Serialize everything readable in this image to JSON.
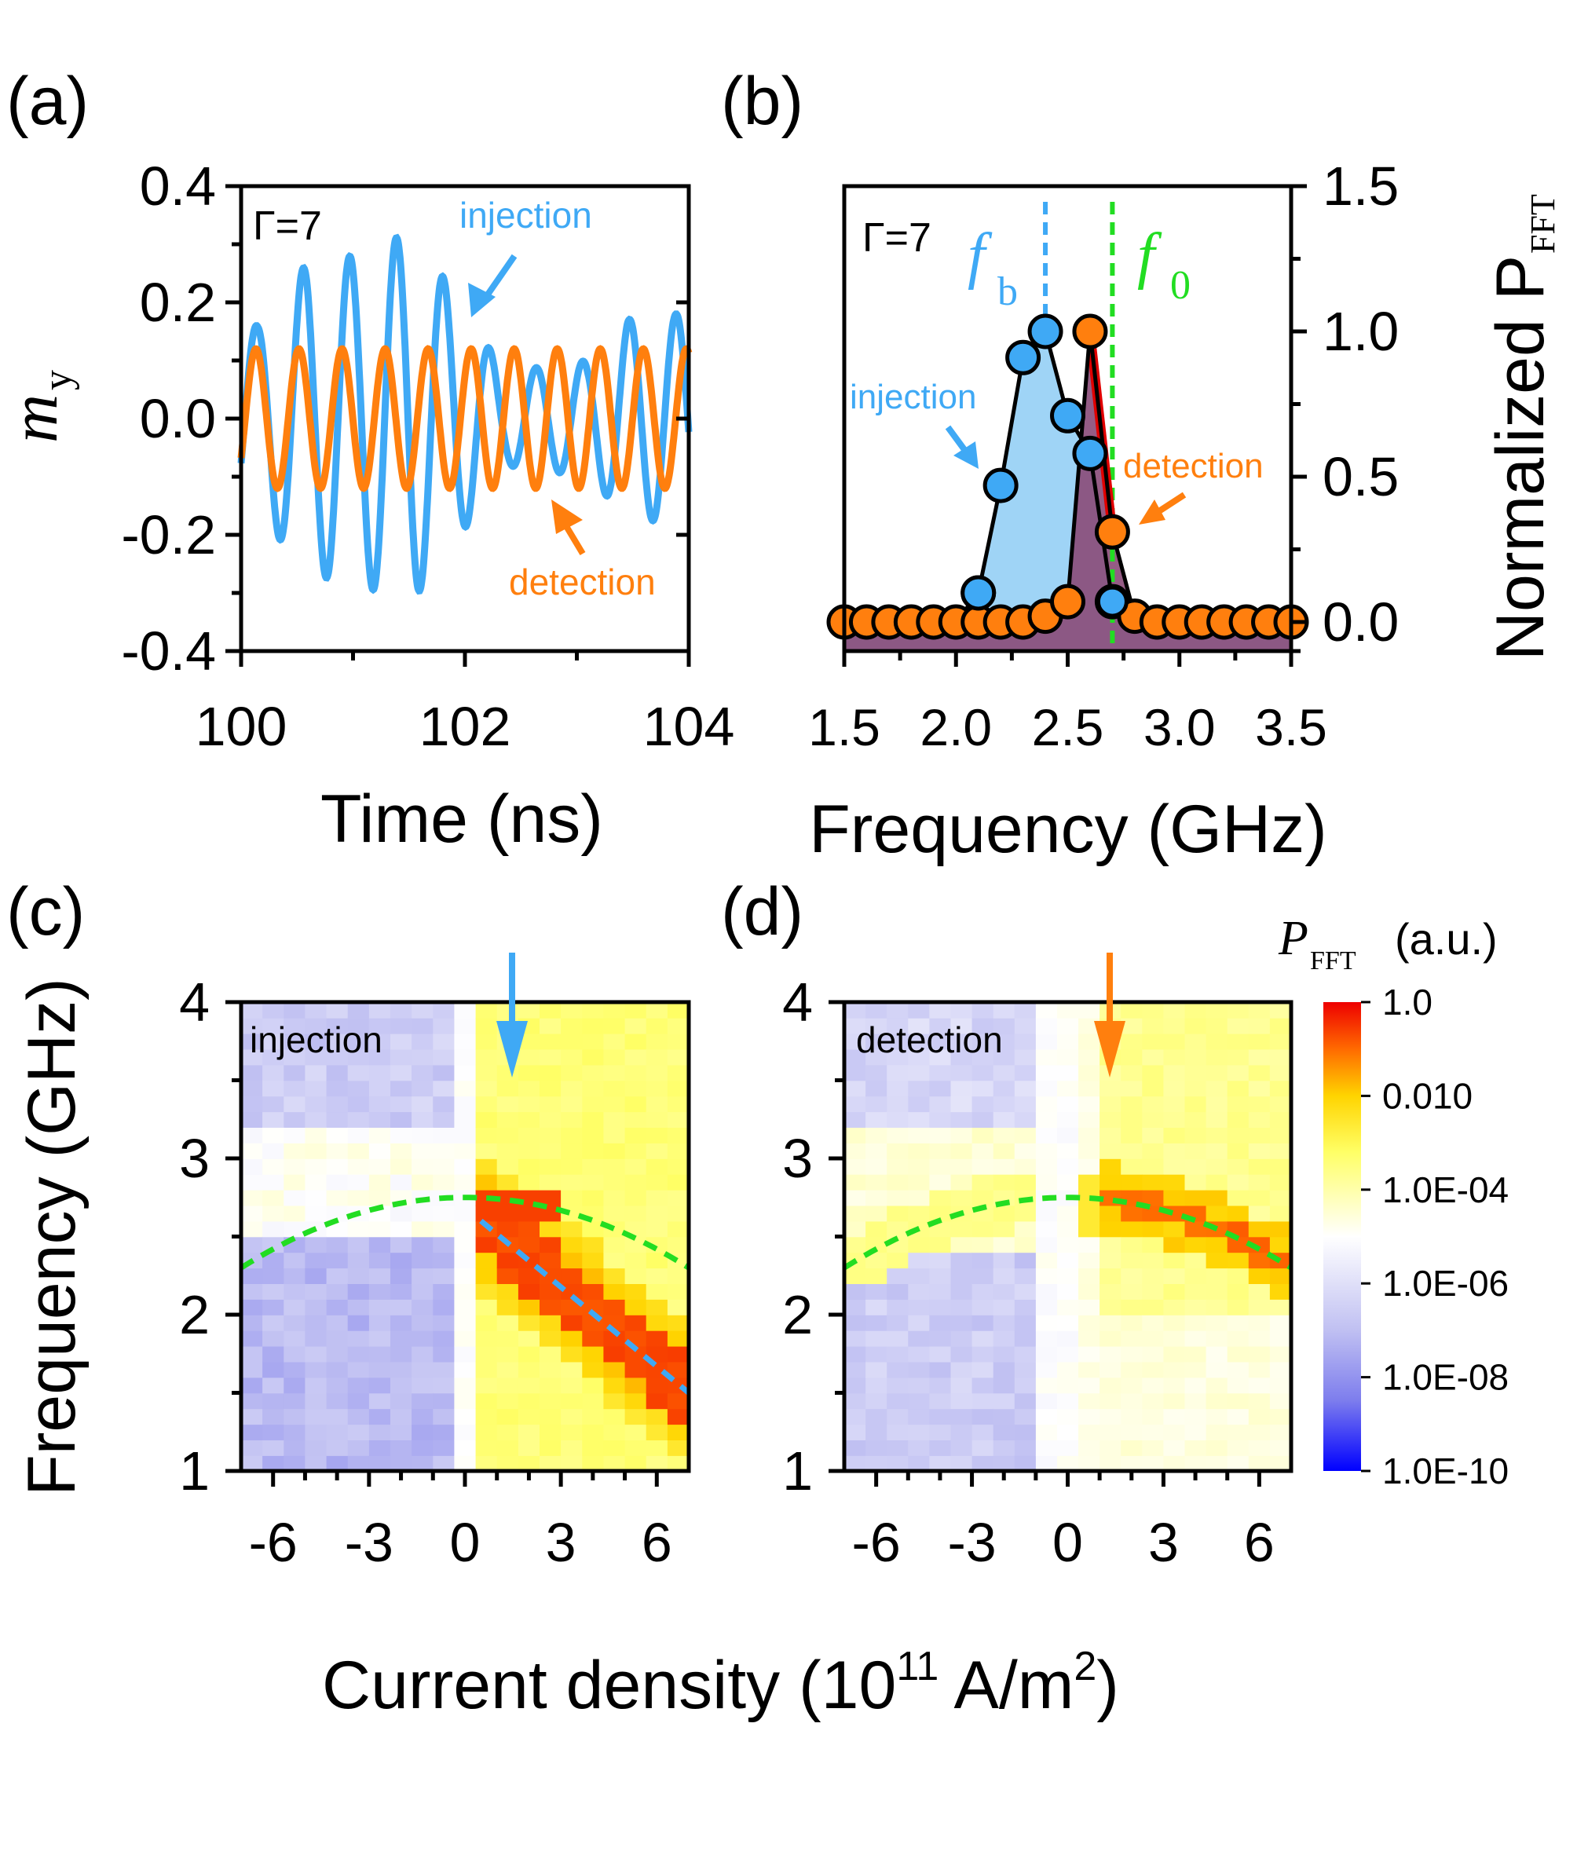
{
  "panels": {
    "a": {
      "label": "(a)"
    },
    "b": {
      "label": "(b)"
    },
    "c": {
      "label": "(c)"
    },
    "d": {
      "label": "(d)"
    }
  },
  "colors": {
    "injection": "#3fa9f5",
    "detection": "#ff7f0e",
    "f0_line": "#22dd22",
    "fb_line": "#3fa9f5",
    "red_line": "#e00000"
  },
  "chart_data": [
    {
      "type": "line",
      "panel": "a",
      "title": "",
      "xlabel": "Time (ns)",
      "ylabel_main": "m",
      "ylabel_sub": "y",
      "xlim": [
        100,
        104
      ],
      "ylim": [
        -0.4,
        0.4
      ],
      "xticks": [
        100,
        102,
        104
      ],
      "xtick_labels": [
        "100",
        "102",
        "104"
      ],
      "yticks": [
        -0.4,
        -0.2,
        0.0,
        0.2,
        0.4
      ],
      "ytick_labels": [
        "-0.4",
        "-0.2",
        "0.0",
        "0.2",
        "0.4"
      ],
      "annotation": "Γ=7",
      "series": [
        {
          "name": "injection",
          "color": "#3fa9f5",
          "frequency_GHz": 2.4,
          "amplitude_max": 0.32,
          "peaks": [
            [
              100.15,
              0.16
            ],
            [
              100.6,
              0.27
            ],
            [
              101.0,
              0.28
            ],
            [
              101.5,
              0.32
            ],
            [
              101.9,
              0.22
            ],
            [
              102.35,
              0.08
            ],
            [
              103.1,
              0.1
            ],
            [
              103.45,
              0.17
            ],
            [
              103.85,
              0.18
            ]
          ]
        },
        {
          "name": "detection",
          "color": "#ff7f0e",
          "frequency_GHz": 2.6,
          "amplitude": 0.12
        }
      ],
      "labels": {
        "injection": "injection",
        "detection": "detection"
      }
    },
    {
      "type": "line",
      "panel": "b",
      "xlabel": "Frequency (GHz)",
      "ylabel_main": "Normalized P",
      "ylabel_sub": "FFT",
      "xlim": [
        1.5,
        3.5
      ],
      "ylim": [
        -0.1,
        1.5
      ],
      "xticks": [
        1.5,
        2.0,
        2.5,
        3.0,
        3.5
      ],
      "xtick_labels": [
        "1.5",
        "2.0",
        "2.5",
        "3.0",
        "3.5"
      ],
      "yticks": [
        0.0,
        0.5,
        1.0,
        1.5
      ],
      "ytick_labels": [
        "0.0",
        "0.5",
        "1.0",
        "1.5"
      ],
      "annotation": "Γ=7",
      "fb_label": "f",
      "fb_sub": "b",
      "f0_label": "f",
      "f0_sub": "0",
      "fb_value": 2.4,
      "f0_value": 2.7,
      "series": [
        {
          "name": "injection",
          "color": "#3fa9f5",
          "x": [
            1.5,
            1.6,
            1.7,
            1.8,
            1.9,
            2.0,
            2.1,
            2.2,
            2.3,
            2.4,
            2.5,
            2.6,
            2.7,
            2.8,
            2.9,
            3.0,
            3.1,
            3.2,
            3.3,
            3.4,
            3.5
          ],
          "y": [
            0.0,
            0.0,
            0.0,
            0.0,
            0.0,
            0.0,
            0.1,
            0.47,
            0.91,
            1.0,
            0.71,
            0.58,
            0.07,
            0.01,
            0.0,
            0.0,
            0.0,
            0.0,
            0.0,
            0.0,
            0.0
          ]
        },
        {
          "name": "detection",
          "color": "#ff7f0e",
          "x": [
            1.5,
            1.6,
            1.7,
            1.8,
            1.9,
            2.0,
            2.1,
            2.2,
            2.3,
            2.4,
            2.5,
            2.6,
            2.7,
            2.8,
            2.9,
            3.0,
            3.1,
            3.2,
            3.3,
            3.4,
            3.5
          ],
          "y": [
            0.0,
            0.0,
            0.0,
            0.0,
            0.0,
            0.0,
            0.0,
            0.0,
            0.0,
            0.02,
            0.07,
            1.0,
            0.31,
            0.02,
            0.0,
            0.0,
            0.0,
            0.0,
            0.0,
            0.0,
            0.0
          ]
        }
      ],
      "labels": {
        "injection": "injection",
        "detection": "detection"
      }
    },
    {
      "type": "heatmap",
      "panel": "c",
      "label": "injection",
      "xlim": [
        -7,
        7
      ],
      "ylim": [
        1,
        4
      ],
      "xticks": [
        -6,
        -3,
        0,
        3,
        6
      ],
      "xtick_labels": [
        "-6",
        "-3",
        "0",
        "3",
        "6"
      ],
      "yticks": [
        1,
        2,
        3,
        4
      ],
      "ytick_labels": [
        "1",
        "2",
        "3",
        "4"
      ],
      "f0_curve": {
        "peak_GHz": 2.75,
        "value_at_pm7_GHz": 2.3
      },
      "fb_line": {
        "from": [
          0.5,
          2.6
        ],
        "to": [
          7,
          1.5
        ]
      },
      "arrow_at_x": 1.5,
      "cmap_log_range": [
        -10,
        0
      ]
    },
    {
      "type": "heatmap",
      "panel": "d",
      "label": "detection",
      "xlim": [
        -7,
        7
      ],
      "ylim": [
        1,
        4
      ],
      "xticks": [
        -6,
        -3,
        0,
        3,
        6
      ],
      "xtick_labels": [
        "-6",
        "-3",
        "0",
        "3",
        "6"
      ],
      "yticks": [
        1,
        2,
        3,
        4
      ],
      "ytick_labels": [
        "1",
        "2",
        "3",
        "4"
      ],
      "f0_curve": {
        "peak_GHz": 2.75,
        "value_at_pm7_GHz": 2.3
      },
      "arrow_at_x": 1.5,
      "cmap_log_range": [
        -10,
        0
      ]
    }
  ],
  "heatmap_axes": {
    "ylabel": "Frequency (GHz)",
    "xlabel_main": "Current density (10",
    "xlabel_exp1": "11",
    "xlabel_unit": " A/m",
    "xlabel_exp2": "2",
    "xlabel_end": ")"
  },
  "colorbar": {
    "title_main": "P",
    "title_sub": "FFT",
    "title_unit": "(a.u.)",
    "tick_labels": [
      "1.0",
      "0.010",
      "1.0E-04",
      "1.0E-06",
      "1.0E-08",
      "1.0E-10"
    ],
    "tick_values": [
      1.0,
      0.01,
      0.0001,
      1e-06,
      1e-08,
      1e-10
    ]
  }
}
